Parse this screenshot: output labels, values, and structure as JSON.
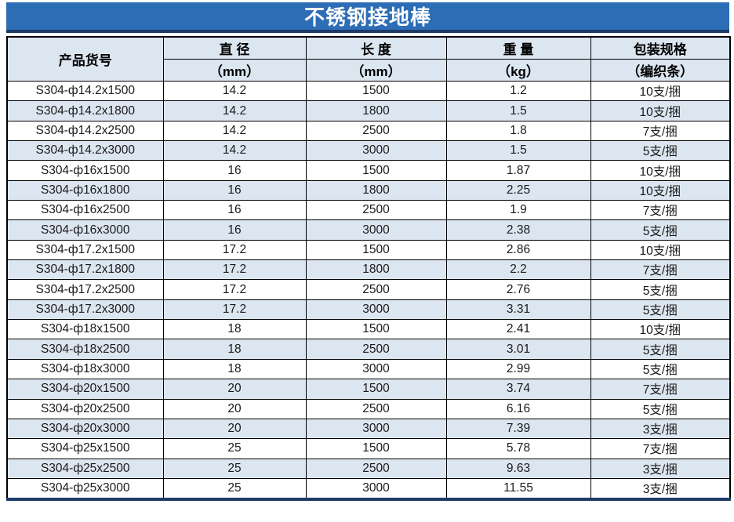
{
  "title": "不锈钢接地棒",
  "colors": {
    "title_background": "#2D6DB5",
    "title_text": "#FFFFFF",
    "navy_accent_border": "#1E3A66",
    "header_background": "#DCE6F1",
    "alt_row_background": "#DCE6F1",
    "grid_border": "#000000",
    "body_text": "#1A1A1A"
  },
  "table": {
    "column_keys": [
      "product-code",
      "diameter",
      "length",
      "weight",
      "packing"
    ],
    "columns": [
      {
        "name": "产品货号",
        "unit": ""
      },
      {
        "name": "直 径",
        "unit": "（mm）"
      },
      {
        "name": "长 度",
        "unit": "（mm）"
      },
      {
        "name": "重 量",
        "unit": "（kg）"
      },
      {
        "name": "包装规格",
        "unit": "（编织条）"
      }
    ],
    "rows": [
      [
        "S304-ф14.2x1500",
        "14.2",
        "1500",
        "1.2",
        "10支/捆"
      ],
      [
        "S304-ф14.2x1800",
        "14.2",
        "1800",
        "1.5",
        "10支/捆"
      ],
      [
        "S304-ф14.2x2500",
        "14.2",
        "2500",
        "1.8",
        "7支/捆"
      ],
      [
        "S304-ф14.2x3000",
        "14.2",
        "3000",
        "1.5",
        "5支/捆"
      ],
      [
        "S304-ф16x1500",
        "16",
        "1500",
        "1.87",
        "10支/捆"
      ],
      [
        "S304-ф16x1800",
        "16",
        "1800",
        "2.25",
        "10支/捆"
      ],
      [
        "S304-ф16x2500",
        "16",
        "2500",
        "1.9",
        "7支/捆"
      ],
      [
        "S304-ф16x3000",
        "16",
        "3000",
        "2.38",
        "5支/捆"
      ],
      [
        "S304-ф17.2x1500",
        "17.2",
        "1500",
        "2.86",
        "10支/捆"
      ],
      [
        "S304-ф17.2x1800",
        "17.2",
        "1800",
        "2.2",
        "7支/捆"
      ],
      [
        "S304-ф17.2x2500",
        "17.2",
        "2500",
        "2.76",
        "5支/捆"
      ],
      [
        "S304-ф17.2x3000",
        "17.2",
        "3000",
        "3.31",
        "5支/捆"
      ],
      [
        "S304-ф18x1500",
        "18",
        "1500",
        "2.41",
        "10支/捆"
      ],
      [
        "S304-ф18x2500",
        "18",
        "2500",
        "3.01",
        "5支/捆"
      ],
      [
        "S304-ф18x3000",
        "18",
        "3000",
        "2.99",
        "5支/捆"
      ],
      [
        "S304-ф20x1500",
        "20",
        "1500",
        "3.74",
        "7支/捆"
      ],
      [
        "S304-ф20x2500",
        "20",
        "2500",
        "6.16",
        "5支/捆"
      ],
      [
        "S304-ф20x3000",
        "20",
        "3000",
        "7.39",
        "3支/捆"
      ],
      [
        "S304-ф25x1500",
        "25",
        "1500",
        "5.78",
        "7支/捆"
      ],
      [
        "S304-ф25x2500",
        "25",
        "2500",
        "9.63",
        "3支/捆"
      ],
      [
        "S304-ф25x3000",
        "25",
        "3000",
        "11.55",
        "3支/捆"
      ]
    ]
  }
}
